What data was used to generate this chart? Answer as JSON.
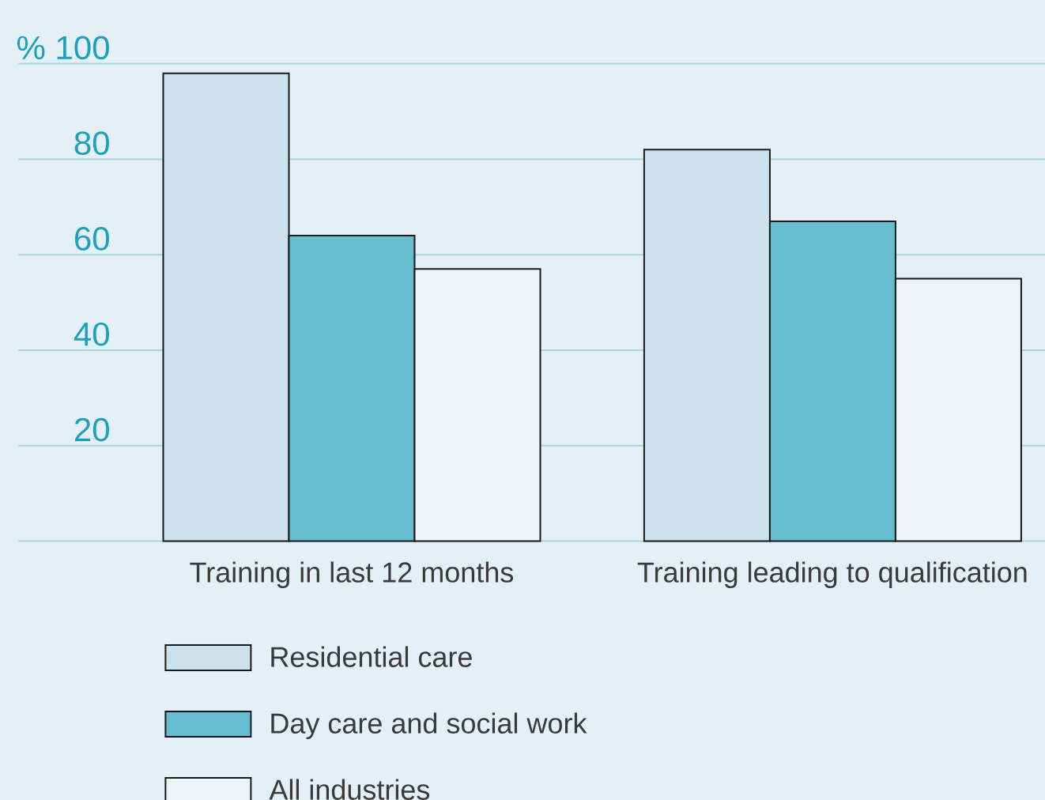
{
  "chart_data": {
    "type": "bar",
    "categories": [
      "Training in last 12 months",
      "Training leading to qualification"
    ],
    "series": [
      {
        "name": "Residential care",
        "color": "#cbe2ec",
        "values": [
          98,
          82
        ]
      },
      {
        "name": "Day care and social work",
        "color": "#67bdd0",
        "values": [
          64,
          67
        ]
      },
      {
        "name": "All industries",
        "color": "#edf5f8",
        "values": [
          57,
          55
        ]
      }
    ],
    "ylim": [
      0,
      100
    ],
    "yticks": [
      {
        "value": 0,
        "label": null
      },
      20,
      40,
      60,
      80,
      {
        "value": 100,
        "label": "% 100"
      }
    ],
    "grid": "y",
    "legend": "bottom"
  }
}
